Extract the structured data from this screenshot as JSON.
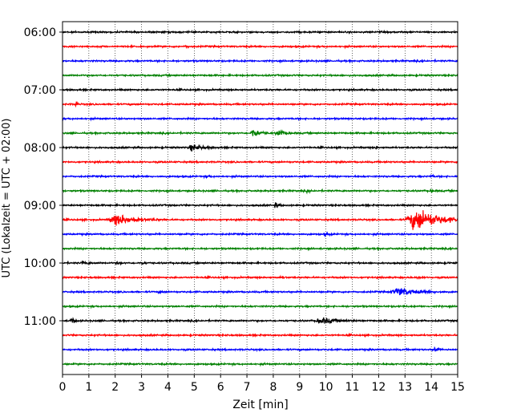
{
  "chart_data": {
    "type": "line",
    "title": "",
    "xlabel": "Zeit  [min]",
    "ylabel": "UTC (Lokalzeit = UTC + 02:00)",
    "xlim": [
      0,
      15
    ],
    "x_ticks": [
      0,
      1,
      2,
      3,
      4,
      5,
      6,
      7,
      8,
      9,
      10,
      11,
      12,
      13,
      14,
      15
    ],
    "y_ticks": [
      "06:00",
      "07:00",
      "08:00",
      "09:00",
      "10:00",
      "11:00"
    ],
    "grid": "vertical dotted",
    "trace_colors": [
      "#000000",
      "#ff0000",
      "#0000ff",
      "#008000"
    ],
    "rows": [
      {
        "start": "06:00",
        "events": []
      },
      {
        "start": "06:15",
        "events": [
          {
            "t": 4.7,
            "amp": 0.3,
            "dur": 0.1
          }
        ]
      },
      {
        "start": "06:30",
        "events": []
      },
      {
        "start": "06:45",
        "events": []
      },
      {
        "start": "07:00",
        "events": []
      },
      {
        "start": "07:15",
        "events": [
          {
            "t": 0.5,
            "amp": 1.3,
            "dur": 0.05
          }
        ]
      },
      {
        "start": "07:30",
        "events": []
      },
      {
        "start": "07:45",
        "events": [
          {
            "t": 7.25,
            "amp": 1.2,
            "dur": 0.25
          },
          {
            "t": 8.2,
            "amp": 1.1,
            "dur": 0.2
          }
        ]
      },
      {
        "start": "08:00",
        "events": [
          {
            "t": 4.95,
            "amp": 0.9,
            "dur": 0.35
          },
          {
            "t": 11.9,
            "amp": 0.3,
            "dur": 0.05
          }
        ]
      },
      {
        "start": "08:15",
        "events": []
      },
      {
        "start": "08:30",
        "events": [
          {
            "t": 5.5,
            "amp": 0.3,
            "dur": 0.1
          },
          {
            "t": 14.0,
            "amp": 0.3,
            "dur": 0.1
          }
        ]
      },
      {
        "start": "08:45",
        "events": [
          {
            "t": 9.3,
            "amp": 0.3,
            "dur": 0.1
          },
          {
            "t": 14.0,
            "amp": 0.3,
            "dur": 0.1
          }
        ]
      },
      {
        "start": "09:00",
        "events": [
          {
            "t": 8.1,
            "amp": 0.9,
            "dur": 0.1
          }
        ]
      },
      {
        "start": "09:15",
        "events": [
          {
            "t": 2.1,
            "amp": 1.6,
            "dur": 0.6
          },
          {
            "t": 13.5,
            "amp": 3.2,
            "dur": 0.8
          }
        ]
      },
      {
        "start": "09:30",
        "events": [
          {
            "t": 10.0,
            "amp": 0.4,
            "dur": 0.1
          }
        ]
      },
      {
        "start": "09:45",
        "events": []
      },
      {
        "start": "10:00",
        "events": [
          {
            "t": 2.1,
            "amp": 0.4,
            "dur": 0.1
          },
          {
            "t": 3.0,
            "amp": 0.4,
            "dur": 0.1
          },
          {
            "t": 0.8,
            "amp": 0.3,
            "dur": 0.2
          }
        ]
      },
      {
        "start": "10:15",
        "events": [
          {
            "t": 8.3,
            "amp": 0.3,
            "dur": 0.1
          },
          {
            "t": 13.5,
            "amp": 0.3,
            "dur": 0.1
          }
        ]
      },
      {
        "start": "10:30",
        "events": [
          {
            "t": 3.7,
            "amp": 0.3,
            "dur": 0.1
          },
          {
            "t": 12.8,
            "amp": 1.2,
            "dur": 0.6
          }
        ]
      },
      {
        "start": "10:45",
        "events": []
      },
      {
        "start": "11:00",
        "events": [
          {
            "t": 0.35,
            "amp": 1.0,
            "dur": 0.1
          },
          {
            "t": 9.9,
            "amp": 0.8,
            "dur": 0.5
          }
        ]
      },
      {
        "start": "11:15",
        "events": []
      },
      {
        "start": "11:30",
        "events": [
          {
            "t": 14.15,
            "amp": 1.2,
            "dur": 0.1
          }
        ]
      },
      {
        "start": "11:45",
        "events": []
      }
    ]
  }
}
